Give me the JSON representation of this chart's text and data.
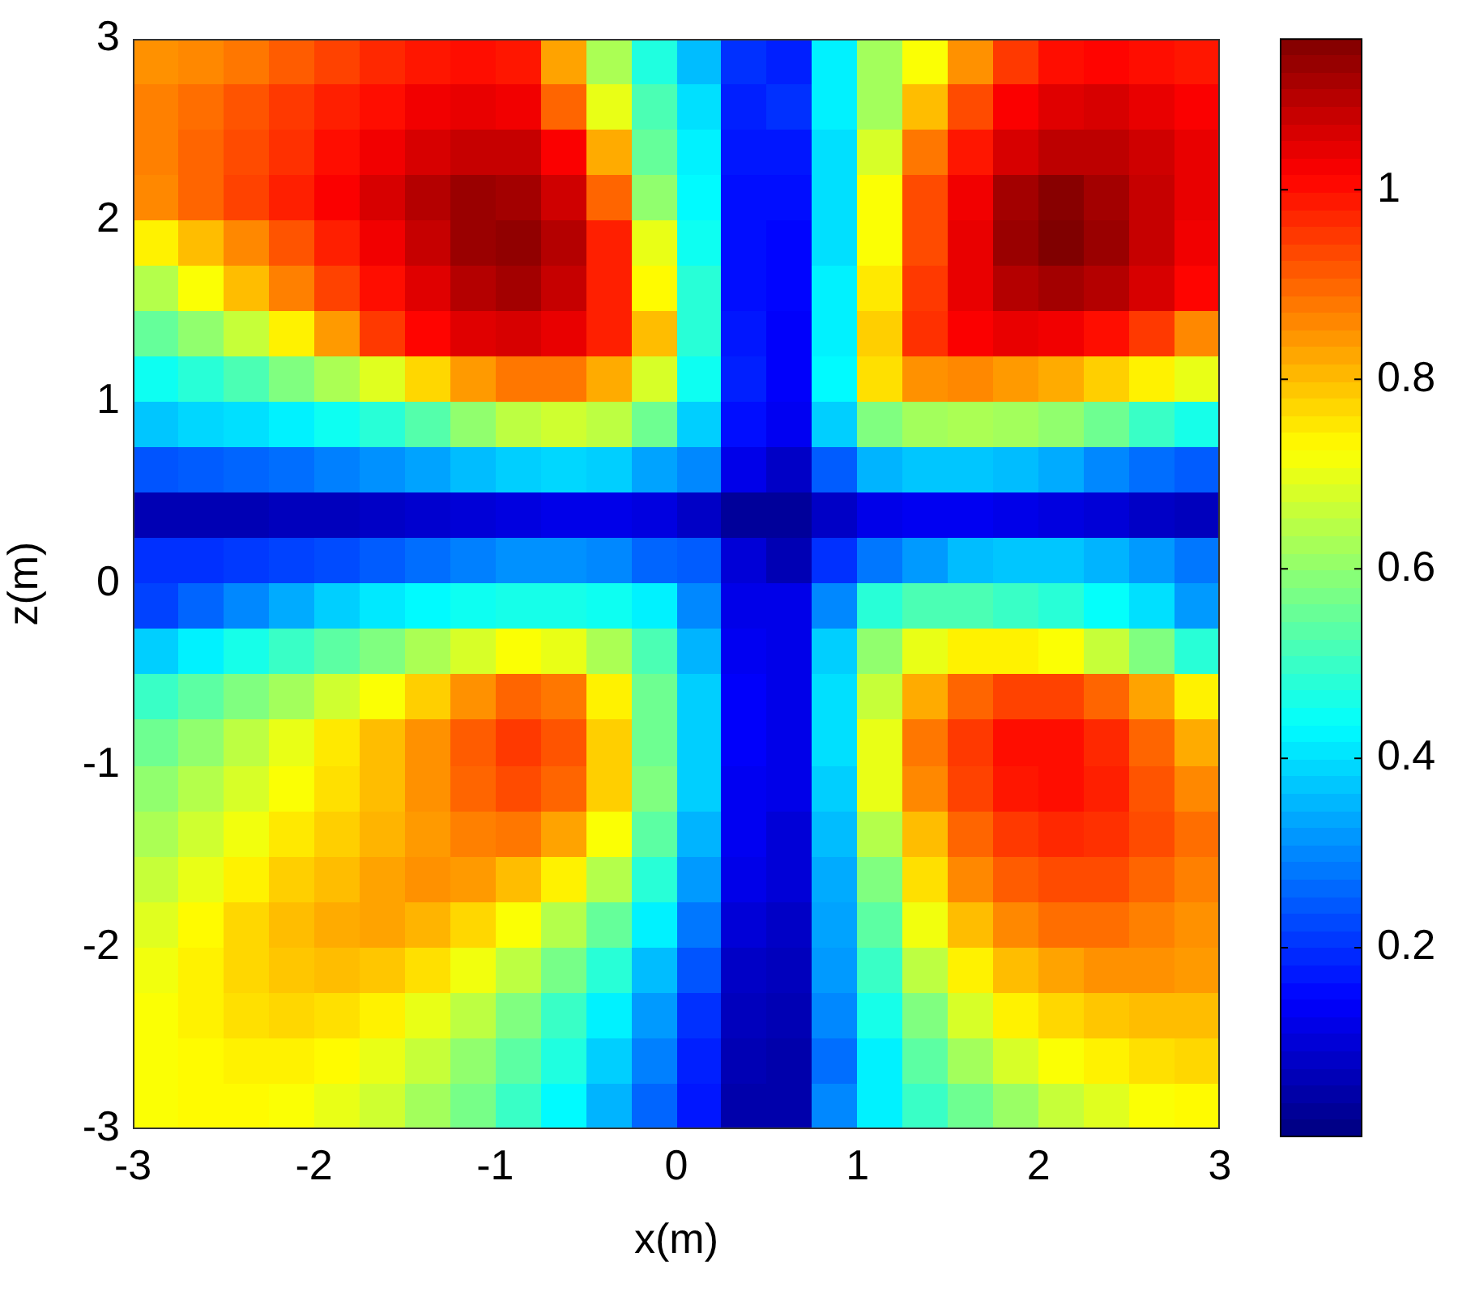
{
  "chart_data": {
    "type": "heatmap",
    "xlabel": "x(m)",
    "ylabel": "z(m)",
    "x": [
      -2.875,
      -2.625,
      -2.375,
      -2.125,
      -1.875,
      -1.625,
      -1.375,
      -1.125,
      -0.875,
      -0.625,
      -0.375,
      -0.125,
      0.125,
      0.375,
      0.625,
      0.875,
      1.125,
      1.375,
      1.625,
      1.875,
      2.125,
      2.375,
      2.625,
      2.875
    ],
    "xlim": [
      -3,
      3
    ],
    "ylim": [
      -3,
      3
    ],
    "xticks": [
      -3,
      -2,
      -1,
      0,
      1,
      2,
      3
    ],
    "yticks": [
      -3,
      -2,
      -1,
      0,
      1,
      2,
      3
    ],
    "clim": [
      0,
      1.16
    ],
    "cticks": [
      0.2,
      0.4,
      0.6,
      0.8,
      1
    ],
    "cells": [
      [
        0.85,
        0.86,
        0.88,
        0.91,
        0.94,
        0.97,
        0.99,
        1.0,
        0.99,
        0.83,
        0.63,
        0.47,
        0.36,
        0.2,
        0.18,
        0.42,
        0.62,
        0.72,
        0.85,
        0.95,
        1.0,
        1.01,
        1.0,
        0.99
      ],
      [
        0.87,
        0.89,
        0.92,
        0.95,
        0.98,
        1.0,
        1.03,
        1.04,
        1.03,
        0.9,
        0.7,
        0.52,
        0.4,
        0.18,
        0.2,
        0.42,
        0.62,
        0.8,
        0.93,
        1.02,
        1.05,
        1.06,
        1.04,
        1.02
      ],
      [
        0.87,
        0.9,
        0.93,
        0.96,
        1.0,
        1.03,
        1.06,
        1.08,
        1.08,
        1.02,
        0.82,
        0.55,
        0.42,
        0.17,
        0.17,
        0.4,
        0.68,
        0.88,
        0.99,
        1.06,
        1.09,
        1.09,
        1.07,
        1.04
      ],
      [
        0.86,
        0.9,
        0.94,
        0.98,
        1.02,
        1.06,
        1.1,
        1.13,
        1.12,
        1.07,
        0.9,
        0.6,
        0.43,
        0.16,
        0.16,
        0.4,
        0.72,
        0.93,
        1.03,
        1.12,
        1.15,
        1.12,
        1.08,
        1.04
      ],
      [
        0.74,
        0.8,
        0.86,
        0.92,
        0.98,
        1.03,
        1.08,
        1.13,
        1.14,
        1.1,
        0.98,
        0.7,
        0.45,
        0.16,
        0.15,
        0.4,
        0.72,
        0.93,
        1.04,
        1.13,
        1.16,
        1.13,
        1.08,
        1.03
      ],
      [
        0.64,
        0.72,
        0.8,
        0.87,
        0.94,
        1.0,
        1.05,
        1.1,
        1.12,
        1.08,
        0.98,
        0.73,
        0.48,
        0.16,
        0.15,
        0.42,
        0.75,
        0.95,
        1.04,
        1.1,
        1.12,
        1.1,
        1.06,
        1.01
      ],
      [
        0.55,
        0.6,
        0.66,
        0.74,
        0.84,
        0.95,
        1.01,
        1.05,
        1.06,
        1.04,
        0.98,
        0.8,
        0.48,
        0.17,
        0.14,
        0.42,
        0.78,
        0.96,
        1.02,
        1.04,
        1.03,
        1.0,
        0.95,
        0.86
      ],
      [
        0.45,
        0.48,
        0.52,
        0.58,
        0.63,
        0.69,
        0.77,
        0.84,
        0.88,
        0.88,
        0.82,
        0.68,
        0.45,
        0.18,
        0.14,
        0.43,
        0.76,
        0.85,
        0.86,
        0.84,
        0.82,
        0.78,
        0.74,
        0.7
      ],
      [
        0.37,
        0.39,
        0.4,
        0.42,
        0.45,
        0.48,
        0.53,
        0.6,
        0.65,
        0.67,
        0.65,
        0.56,
        0.38,
        0.16,
        0.13,
        0.38,
        0.58,
        0.62,
        0.63,
        0.62,
        0.6,
        0.56,
        0.5,
        0.46
      ],
      [
        0.24,
        0.25,
        0.26,
        0.27,
        0.29,
        0.31,
        0.33,
        0.36,
        0.38,
        0.39,
        0.38,
        0.33,
        0.3,
        0.12,
        0.08,
        0.25,
        0.35,
        0.37,
        0.37,
        0.36,
        0.34,
        0.3,
        0.27,
        0.25
      ],
      [
        0.06,
        0.06,
        0.06,
        0.07,
        0.07,
        0.08,
        0.09,
        0.1,
        0.11,
        0.12,
        0.12,
        0.11,
        0.08,
        0.03,
        0.03,
        0.08,
        0.12,
        0.13,
        0.13,
        0.12,
        0.11,
        0.1,
        0.08,
        0.07
      ],
      [
        0.2,
        0.2,
        0.21,
        0.22,
        0.23,
        0.25,
        0.27,
        0.29,
        0.31,
        0.31,
        0.3,
        0.26,
        0.25,
        0.1,
        0.06,
        0.2,
        0.28,
        0.32,
        0.36,
        0.37,
        0.37,
        0.35,
        0.32,
        0.28
      ],
      [
        0.22,
        0.26,
        0.3,
        0.34,
        0.38,
        0.41,
        0.43,
        0.45,
        0.46,
        0.46,
        0.45,
        0.42,
        0.3,
        0.12,
        0.12,
        0.3,
        0.48,
        0.52,
        0.52,
        0.5,
        0.48,
        0.44,
        0.4,
        0.32
      ],
      [
        0.38,
        0.42,
        0.46,
        0.5,
        0.54,
        0.58,
        0.63,
        0.68,
        0.72,
        0.7,
        0.63,
        0.52,
        0.35,
        0.13,
        0.12,
        0.38,
        0.6,
        0.7,
        0.74,
        0.74,
        0.72,
        0.66,
        0.58,
        0.48
      ],
      [
        0.5,
        0.54,
        0.58,
        0.62,
        0.67,
        0.72,
        0.78,
        0.85,
        0.9,
        0.88,
        0.74,
        0.56,
        0.38,
        0.14,
        0.12,
        0.4,
        0.66,
        0.82,
        0.9,
        0.94,
        0.94,
        0.9,
        0.83,
        0.74
      ],
      [
        0.56,
        0.6,
        0.65,
        0.7,
        0.75,
        0.8,
        0.85,
        0.91,
        0.95,
        0.92,
        0.78,
        0.56,
        0.38,
        0.14,
        0.12,
        0.4,
        0.7,
        0.88,
        0.95,
        1.0,
        1.0,
        0.97,
        0.9,
        0.82
      ],
      [
        0.6,
        0.64,
        0.68,
        0.72,
        0.76,
        0.8,
        0.85,
        0.9,
        0.93,
        0.9,
        0.78,
        0.58,
        0.38,
        0.13,
        0.12,
        0.38,
        0.7,
        0.86,
        0.94,
        0.99,
        1.0,
        0.98,
        0.92,
        0.86
      ],
      [
        0.63,
        0.67,
        0.71,
        0.75,
        0.78,
        0.81,
        0.84,
        0.87,
        0.88,
        0.83,
        0.72,
        0.54,
        0.35,
        0.13,
        0.1,
        0.36,
        0.64,
        0.8,
        0.9,
        0.95,
        0.97,
        0.96,
        0.93,
        0.89
      ],
      [
        0.66,
        0.7,
        0.74,
        0.78,
        0.8,
        0.83,
        0.85,
        0.84,
        0.8,
        0.74,
        0.64,
        0.48,
        0.32,
        0.12,
        0.1,
        0.34,
        0.58,
        0.76,
        0.86,
        0.91,
        0.93,
        0.93,
        0.9,
        0.87
      ],
      [
        0.69,
        0.73,
        0.77,
        0.8,
        0.82,
        0.83,
        0.81,
        0.77,
        0.72,
        0.64,
        0.55,
        0.42,
        0.28,
        0.1,
        0.08,
        0.33,
        0.54,
        0.71,
        0.8,
        0.86,
        0.89,
        0.89,
        0.87,
        0.85
      ],
      [
        0.71,
        0.74,
        0.77,
        0.79,
        0.8,
        0.79,
        0.76,
        0.71,
        0.65,
        0.57,
        0.48,
        0.36,
        0.24,
        0.08,
        0.07,
        0.32,
        0.5,
        0.65,
        0.74,
        0.8,
        0.83,
        0.85,
        0.85,
        0.84
      ],
      [
        0.72,
        0.74,
        0.76,
        0.77,
        0.76,
        0.74,
        0.7,
        0.65,
        0.58,
        0.5,
        0.42,
        0.32,
        0.2,
        0.07,
        0.06,
        0.3,
        0.46,
        0.58,
        0.68,
        0.74,
        0.77,
        0.79,
        0.8,
        0.8
      ],
      [
        0.72,
        0.73,
        0.74,
        0.74,
        0.73,
        0.7,
        0.66,
        0.6,
        0.54,
        0.47,
        0.38,
        0.29,
        0.18,
        0.06,
        0.05,
        0.27,
        0.42,
        0.54,
        0.62,
        0.68,
        0.72,
        0.74,
        0.76,
        0.77
      ],
      [
        0.72,
        0.73,
        0.73,
        0.72,
        0.7,
        0.67,
        0.62,
        0.57,
        0.5,
        0.43,
        0.35,
        0.26,
        0.17,
        0.05,
        0.05,
        0.3,
        0.42,
        0.5,
        0.56,
        0.61,
        0.66,
        0.69,
        0.72,
        0.73
      ]
    ]
  }
}
